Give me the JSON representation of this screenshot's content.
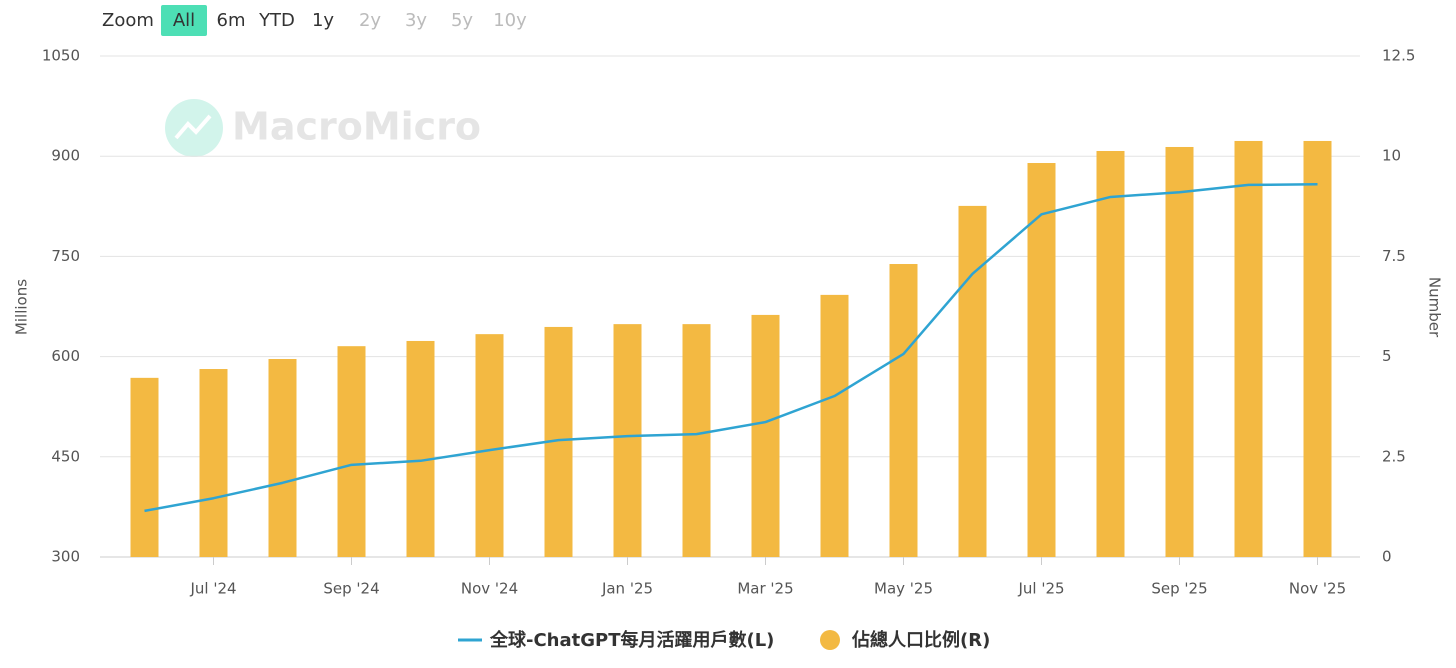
{
  "zoom": {
    "label": "Zoom",
    "buttons": [
      "All",
      "6m",
      "YTD",
      "1y",
      "2y",
      "3y",
      "5y",
      "10y"
    ],
    "active": "All",
    "disabled": [
      "2y",
      "3y",
      "5y",
      "10y"
    ]
  },
  "watermark": "MacroMicro",
  "chart_data": {
    "type": "combo",
    "categories": [
      null,
      "Jul '24",
      null,
      "Sep '24",
      null,
      "Nov '24",
      null,
      "Jan '25",
      null,
      "Mar '25",
      null,
      "May '25",
      null,
      "Jul '25",
      null,
      "Sep '25",
      null,
      "Nov '25"
    ],
    "series": [
      {
        "name": "全球-ChatGPT每月活躍用戶數(L)",
        "type": "line",
        "color": "#2fa4d2",
        "axis": "y",
        "values": [
          369,
          388,
          411,
          438,
          444,
          460,
          475,
          481,
          484,
          502,
          541,
          604,
          724,
          813,
          839,
          846,
          857,
          858
        ]
      },
      {
        "name": "佔總人口比例(R)",
        "type": "bar",
        "color": "#f3b942",
        "axis": "y2",
        "values": [
          4.47,
          4.69,
          4.94,
          5.26,
          5.39,
          5.56,
          5.74,
          5.81,
          5.81,
          6.04,
          6.54,
          7.31,
          8.76,
          9.83,
          10.13,
          10.23,
          10.38,
          10.38
        ]
      }
    ],
    "y_label": "Millions",
    "y2_label": "Number",
    "ylim": [
      300,
      1050
    ],
    "yticks": [
      300,
      450,
      600,
      750,
      900,
      1050
    ],
    "y2lim": [
      0,
      12.5
    ],
    "y2ticks": [
      0,
      2.5,
      5,
      7.5,
      10,
      12.5
    ],
    "grid": true
  }
}
